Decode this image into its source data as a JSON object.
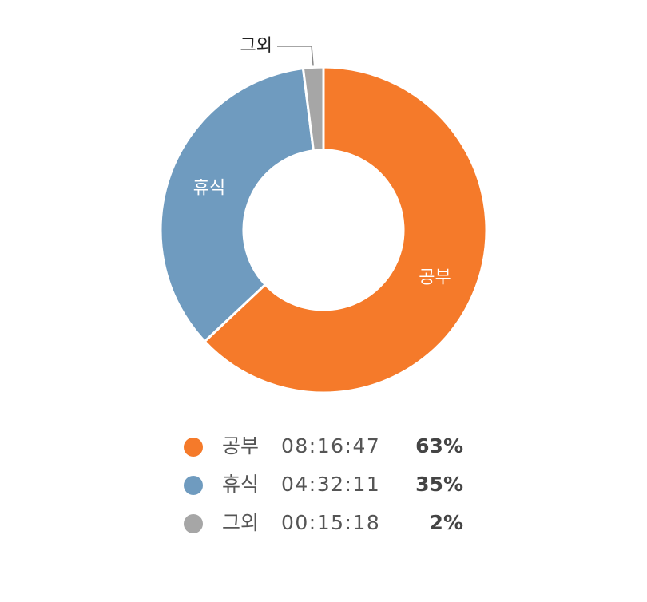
{
  "chart_data": {
    "type": "donut",
    "categories": [
      "공부",
      "휴식",
      "그외"
    ],
    "durations": [
      "08:16:47",
      "04:32:11",
      "00:15:18"
    ],
    "values": [
      63,
      35,
      2
    ],
    "value_labels": [
      "63%",
      "35%",
      "2%"
    ],
    "colors": [
      "#f57a2a",
      "#6f9bbf",
      "#a6a6a6"
    ]
  }
}
